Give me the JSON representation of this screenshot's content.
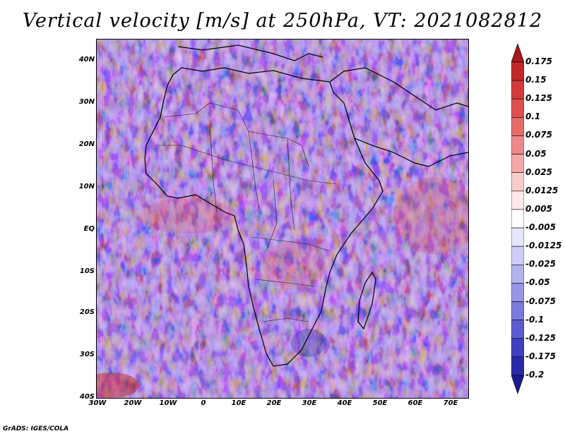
{
  "title": "Vertical velocity [m/s] at 250hPa, VT: 2021082812",
  "credit": "GrADS: IGES/COLA",
  "lat_labels": [
    "40N",
    "30N",
    "20N",
    "10N",
    "EQ",
    "10S",
    "20S",
    "30S",
    "40S"
  ],
  "lon_labels": [
    "30W",
    "20W",
    "10W",
    "0",
    "10E",
    "20E",
    "30E",
    "40E",
    "50E",
    "60E",
    "70E"
  ],
  "colorbar": {
    "labels": [
      "0.175",
      "0.15",
      "0.125",
      "0.1",
      "0.075",
      "0.05",
      "0.025",
      "0.0125",
      "0.005",
      "-0.005",
      "-0.0125",
      "-0.025",
      "-0.05",
      "-0.075",
      "-0.1",
      "-0.125",
      "-0.175",
      "-0.2"
    ],
    "colors": [
      "#a51a1a",
      "#c32828",
      "#d43a3a",
      "#e05050",
      "#e76b6b",
      "#ee8989",
      "#f4a9a9",
      "#f9cccc",
      "#fde9e9",
      "#ffffff",
      "#e6e6fa",
      "#cdcdf5",
      "#b2b2ee",
      "#9797e6",
      "#7b7bdc",
      "#5c5cd0",
      "#4040c0",
      "#2a2aa8",
      "#1a1a8c"
    ]
  }
}
